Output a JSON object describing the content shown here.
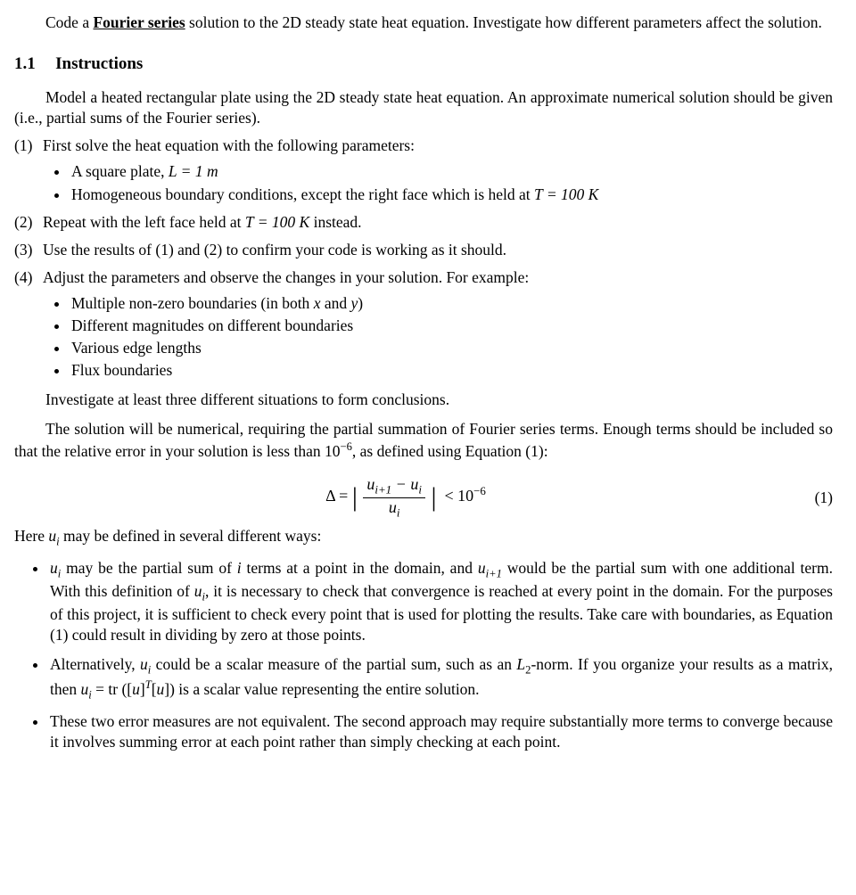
{
  "intro": {
    "pre": "Code a ",
    "term": "Fourier series",
    "post": " solution to the 2D steady state heat equation. Investigate how different parameters affect the solution."
  },
  "section": {
    "num": "1.1",
    "title": "Instructions"
  },
  "model_para": "Model a heated rectangular plate using the 2D steady state heat equation. An approximate numerical solution should be given (i.e., partial sums of the Fourier series).",
  "items": {
    "i1": {
      "n": "(1)",
      "t": "First solve the heat equation with the following parameters:"
    },
    "i1a_pre": "A square plate, ",
    "i1a_math": "L = 1 m",
    "i1b_pre": "Homogeneous boundary conditions, except the right face which is held at ",
    "i1b_math": "T = 100 K",
    "i2": {
      "n": "(2)",
      "pre": "Repeat with the left face held at ",
      "math": "T = 100 K",
      "post": " instead."
    },
    "i3": {
      "n": "(3)",
      "t": "Use the results of (1) and (2) to confirm your code is working as it should."
    },
    "i4": {
      "n": "(4)",
      "t": "Adjust the parameters and observe the changes in your solution. For example:"
    },
    "i4a_pre": "Multiple non-zero boundaries (in both ",
    "i4a_x": "x",
    "i4a_mid": " and ",
    "i4a_y": "y",
    "i4a_post": ")",
    "i4b": "Different magnitudes on different boundaries",
    "i4c": "Various edge lengths",
    "i4d": "Flux boundaries"
  },
  "invest": "Investigate at least three different situations to form conclusions.",
  "numerical_pre": "The solution will be numerical, requiring the partial summation of Fourier series terms. Enough terms should be included so that the relative error in your solution is less than 10",
  "numerical_exp": "−6",
  "numerical_post": ", as defined using Equation (1):",
  "eq": {
    "delta": "Δ =",
    "num_a": "u",
    "num_a_sub": "i+1",
    "num_b": " − u",
    "num_b_sub": "i",
    "den_a": "u",
    "den_a_sub": "i",
    "lt": "< 10",
    "exp": "−6",
    "tag": "(1)"
  },
  "here_pre": "Here ",
  "here_math": "u",
  "here_math_sub": "i",
  "here_post": " may be defined in several different ways:",
  "b1": {
    "a": "u",
    "a_sub": "i",
    "t1": " may be the partial sum of ",
    "ii": "i",
    "t2": " terms at a point in the domain, and ",
    "b": "u",
    "b_sub": "i+1",
    "t3": " would be the partial sum with one additional term. With this definition of ",
    "c": "u",
    "c_sub": "i",
    "t4": ", it is necessary to check that convergence is reached at every point in the domain. For the purposes of this project, it is sufficient to check every point that is used for plotting the results. Take care with boundaries, as Equation (1) could result in dividing by zero at those points."
  },
  "b2": {
    "t1": "Alternatively, ",
    "a": "u",
    "a_sub": "i",
    "t2": " could be a scalar measure of the partial sum, such as an ",
    "L": "L",
    "L_sub": "2",
    "t3": "-norm. If you organize your results as a matrix, then ",
    "b": "u",
    "b_sub": "i",
    "eq": " = tr ([",
    "uu": "u",
    "t4": "]",
    "T": "T",
    "t5": "[",
    "uu2": "u",
    "t6": "]) is a scalar value representing the entire solution."
  },
  "b3": "These two error measures are not equivalent. The second approach may require substantially more terms to converge because it involves summing error at each point rather than simply checking at each point."
}
